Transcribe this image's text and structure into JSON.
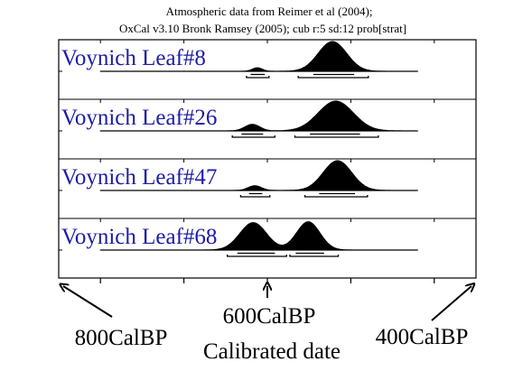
{
  "chart_data": {
    "type": "area",
    "title_line1": "Atmospheric data from Reimer et al (2004);",
    "title_line2": "OxCal v3.10 Bronk Ramsey  (2005); cub r:5 sd:12 prob[strat]",
    "xlabel": "Calibrated date",
    "x_unit": "CalBP",
    "x_reversed": true,
    "xlim": [
      850,
      350
    ],
    "x_ticks": [
      800,
      700,
      600,
      500,
      400
    ],
    "arrow_labels": [
      {
        "name": "800-calbp",
        "text": "800CalBP",
        "x": 850
      },
      {
        "name": "600-calbp",
        "text": "600CalBP",
        "x": 600
      },
      {
        "name": "400-calbp",
        "text": "400CalBP",
        "x": 350
      }
    ],
    "series": [
      {
        "name": "Voynich Leaf#8",
        "peaks": [
          {
            "center": 612,
            "sigma": 6,
            "height": 0.12
          },
          {
            "center": 522,
            "sigma": 17,
            "height": 1.0
          }
        ],
        "ranges_68": [
          [
            620,
            603
          ],
          [
            545,
            496
          ]
        ],
        "ranges_95": [
          [
            625,
            598
          ],
          [
            563,
            479
          ]
        ]
      },
      {
        "name": "Voynich Leaf#26",
        "peaks": [
          {
            "center": 618,
            "sigma": 9,
            "height": 0.22
          },
          {
            "center": 518,
            "sigma": 21,
            "height": 1.0
          }
        ],
        "ranges_68": [
          [
            631,
            605
          ],
          [
            549,
            489
          ]
        ],
        "ranges_95": [
          [
            642,
            591
          ],
          [
            567,
            467
          ]
        ]
      },
      {
        "name": "Voynich Leaf#47",
        "peaks": [
          {
            "center": 615,
            "sigma": 8,
            "height": 0.16
          },
          {
            "center": 516,
            "sigma": 17,
            "height": 1.0
          }
        ],
        "ranges_68": [
          [
            622,
            606
          ],
          [
            538,
            495
          ]
        ],
        "ranges_95": [
          [
            632,
            597
          ],
          [
            555,
            480
          ]
        ]
      },
      {
        "name": "Voynich Leaf#68",
        "peaks": [
          {
            "center": 617,
            "sigma": 16,
            "height": 0.92
          },
          {
            "center": 551,
            "sigma": 14,
            "height": 0.95
          }
        ],
        "ranges_68": [
          [
            636,
            591
          ],
          [
            566,
            532
          ]
        ],
        "ranges_95": [
          [
            648,
            577
          ],
          [
            573,
            515
          ]
        ]
      }
    ]
  }
}
